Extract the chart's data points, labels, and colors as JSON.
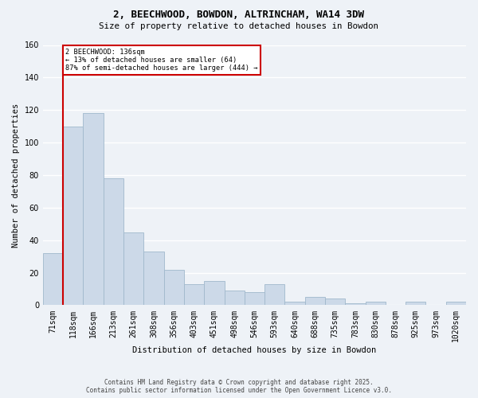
{
  "title1": "2, BEECHWOOD, BOWDON, ALTRINCHAM, WA14 3DW",
  "title2": "Size of property relative to detached houses in Bowdon",
  "xlabel": "Distribution of detached houses by size in Bowdon",
  "ylabel": "Number of detached properties",
  "bin_labels": [
    "71sqm",
    "118sqm",
    "166sqm",
    "213sqm",
    "261sqm",
    "308sqm",
    "356sqm",
    "403sqm",
    "451sqm",
    "498sqm",
    "546sqm",
    "593sqm",
    "640sqm",
    "688sqm",
    "735sqm",
    "783sqm",
    "830sqm",
    "878sqm",
    "925sqm",
    "973sqm",
    "1020sqm"
  ],
  "bar_values": [
    32,
    110,
    118,
    78,
    45,
    33,
    22,
    13,
    15,
    9,
    8,
    13,
    2,
    5,
    4,
    1,
    2,
    0,
    2,
    0,
    2
  ],
  "bar_color": "#ccd9e8",
  "bar_edge_color": "#a0b8cc",
  "property_line_index": 1,
  "property_line_label": "2 BEECHWOOD: 136sqm",
  "annotation_line1": "← 13% of detached houses are smaller (64)",
  "annotation_line2": "87% of semi-detached houses are larger (444) →",
  "annotation_box_color": "#ffffff",
  "annotation_box_edge_color": "#cc0000",
  "property_line_color": "#cc0000",
  "ylim": [
    0,
    160
  ],
  "yticks": [
    0,
    20,
    40,
    60,
    80,
    100,
    120,
    140,
    160
  ],
  "footer1": "Contains HM Land Registry data © Crown copyright and database right 2025.",
  "footer2": "Contains public sector information licensed under the Open Government Licence v3.0.",
  "bg_color": "#eef2f7",
  "grid_color": "#ffffff"
}
